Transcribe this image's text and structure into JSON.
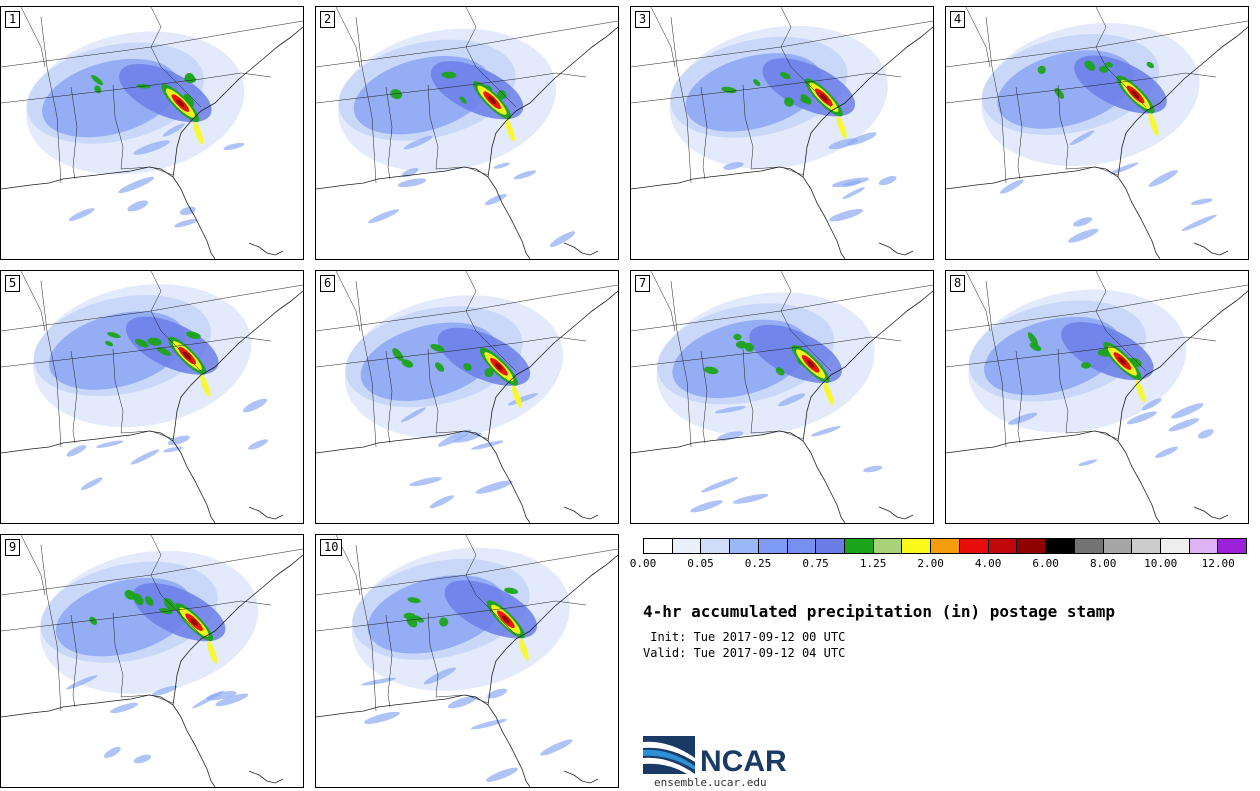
{
  "panels": [
    {
      "label": "1"
    },
    {
      "label": "2"
    },
    {
      "label": "3"
    },
    {
      "label": "4"
    },
    {
      "label": "5"
    },
    {
      "label": "6"
    },
    {
      "label": "7"
    },
    {
      "label": "8"
    },
    {
      "label": "9"
    },
    {
      "label": "10"
    }
  ],
  "colorbar": {
    "colors": [
      "#ffffff",
      "#e8f0fc",
      "#d0ddf8",
      "#9ab8f5",
      "#7f9cf5",
      "#7590f0",
      "#6b7ee8",
      "#1ba31b",
      "#a8d277",
      "#fbf91c",
      "#f59d0b",
      "#e80b0b",
      "#c2070b",
      "#8e0202",
      "#000000",
      "#737373",
      "#a6a6a6",
      "#cccccc",
      "#eeeeee",
      "#ddb3f5",
      "#9b22d8"
    ],
    "tick_labels": [
      "0.00",
      "0.05",
      "0.25",
      "0.75",
      "1.25",
      "2.00",
      "4.00",
      "6.00",
      "8.00",
      "10.00",
      "12.00"
    ]
  },
  "title": "4-hr accumulated precipitation (in) postage stamp",
  "init": " Init: Tue 2017-09-12 00 UTC",
  "valid": "Valid: Tue 2017-09-12 04 UTC",
  "logo": {
    "name": "NCAR",
    "url": "ensemble.ucar.edu",
    "colors": {
      "dark": "#1a3a66",
      "light": "#2e8fd4"
    }
  },
  "colors": {
    "precip_light": "#dfe8fb",
    "precip_mid": "#8ea9f3",
    "precip_heavy": "#6b7ee8",
    "precip_green": "#1ba31b",
    "precip_yellow": "#fbf91c",
    "precip_red": "#e80b0b",
    "precip_dark": "#8e0202"
  }
}
